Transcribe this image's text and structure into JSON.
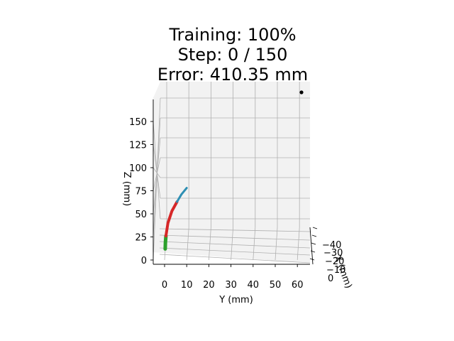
{
  "title": {
    "line1": "Training: 100%",
    "line2": "Step: 0 / 150",
    "line3": "Error: 410.35 mm"
  },
  "chart_data": {
    "type": "line3d",
    "title": "Training: 100%\nStep: 0 / 150\nError: 410.35 mm",
    "xlabel": "X (mm)",
    "ylabel": "Y (mm)",
    "zlabel": "Z (mm)",
    "x_ticks": [
      "0",
      "10",
      "20",
      "30",
      "40"
    ],
    "x_tick_display": [
      "0",
      "−10",
      "−20",
      "−30",
      "−40"
    ],
    "y_ticks": [
      0,
      10,
      20,
      30,
      40,
      50,
      60
    ],
    "z_ticks": [
      0,
      25,
      50,
      75,
      100,
      125,
      150
    ],
    "ylim": [
      -5,
      65
    ],
    "zlim": [
      0,
      175
    ],
    "grid": true,
    "target_point": {
      "x": 0,
      "y": 61,
      "z": 170,
      "color": "#000000"
    },
    "series": [
      {
        "color": "#2ca02c",
        "points": [
          {
            "y": 0.3,
            "z": 12
          },
          {
            "y": 0.4,
            "z": 19
          },
          {
            "y": 0.6,
            "z": 26
          }
        ]
      },
      {
        "color": "#d62728",
        "points": [
          {
            "y": 0.6,
            "z": 26
          },
          {
            "y": 1.5,
            "z": 40
          },
          {
            "y": 3.3,
            "z": 53
          },
          {
            "y": 5.6,
            "z": 63
          }
        ]
      },
      {
        "color": "#2e8fb3",
        "points": [
          {
            "y": 5.6,
            "z": 63
          },
          {
            "y": 7.6,
            "z": 71
          },
          {
            "y": 10.0,
            "z": 78
          }
        ]
      }
    ]
  }
}
